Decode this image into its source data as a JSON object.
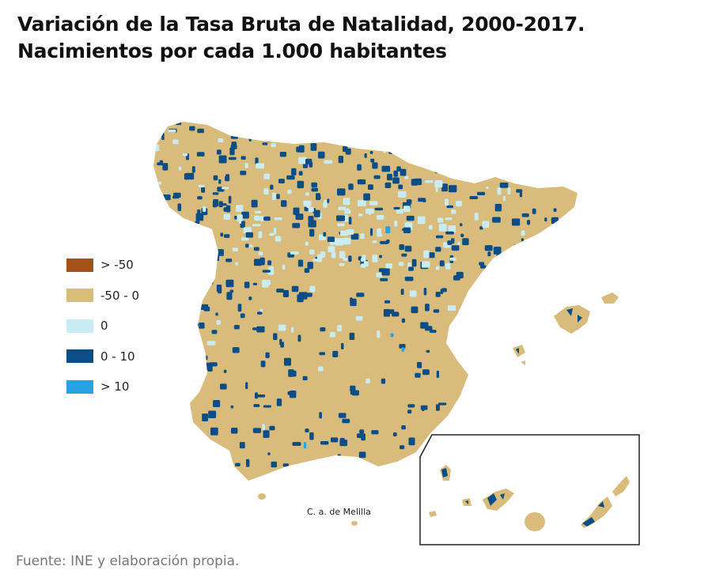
{
  "title": {
    "line1": "Variación de la Tasa Bruta de Natalidad, 2000-2017.",
    "line2": "Nacimientos por cada 1.000 habitantes"
  },
  "legend": [
    {
      "label": "> -50",
      "color": "#a5521a"
    },
    {
      "label": "-50 - 0",
      "color": "#d9bc7b"
    },
    {
      "label": "0",
      "color": "#c8ecf2"
    },
    {
      "label": "0 - 10",
      "color": "#0b4d86"
    },
    {
      "label": "> 10",
      "color": "#29a2e3"
    }
  ],
  "map": {
    "melilla_label": "C. a. de Melilla",
    "base_color": "#d9bc7b",
    "dark_color": "#0b4d86",
    "light_color": "#c8ecf2",
    "bright_color": "#29a2e3"
  },
  "source": "Fuente: INE y elaboración propia."
}
